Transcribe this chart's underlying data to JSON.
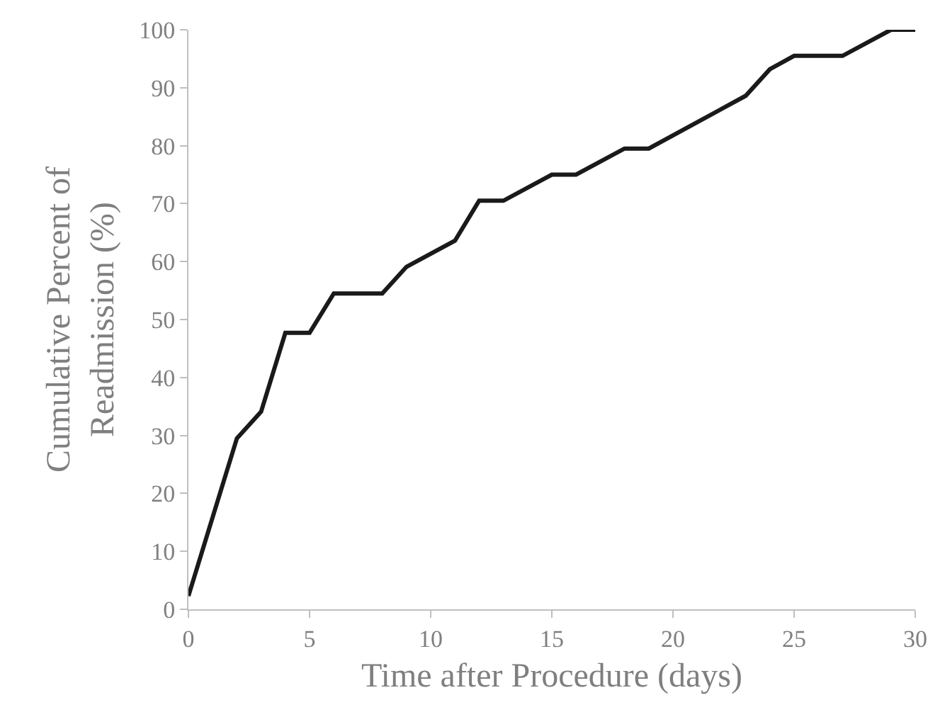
{
  "chart_data": {
    "type": "line",
    "xlabel": "Time after Procedure (days)",
    "ylabel": "Cumulative Percent of\nReadmission (%)",
    "x": [
      0,
      2,
      3,
      4,
      5,
      6,
      8,
      9,
      11,
      12,
      13,
      15,
      16,
      18,
      19,
      23,
      24,
      25,
      27,
      29,
      30
    ],
    "series": [
      {
        "color": "#1a1a1a",
        "values": [
          2.3,
          29.5,
          34.1,
          47.7,
          47.7,
          54.5,
          54.5,
          59.1,
          63.6,
          70.5,
          70.5,
          75,
          75,
          79.5,
          79.5,
          88.6,
          93.2,
          95.5,
          95.5,
          100,
          100
        ]
      }
    ],
    "xlim": [
      0,
      30
    ],
    "xticks": [
      0,
      5,
      10,
      15,
      20,
      25,
      30
    ],
    "ylim": [
      0,
      100
    ],
    "yticks": [
      0,
      10,
      20,
      30,
      40,
      50,
      60,
      70,
      80,
      90,
      100
    ],
    "marker": "none",
    "line_style": "solid"
  }
}
